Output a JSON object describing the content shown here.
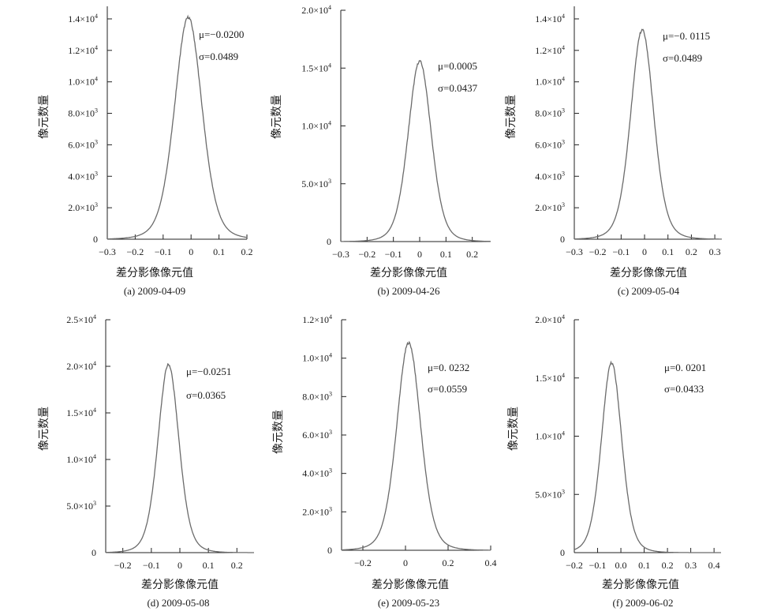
{
  "figure": {
    "x_axis_label": "差分影像像元值",
    "y_axis_label": "像元数量"
  },
  "chart_data": [
    {
      "type": "line",
      "caption": "(a) 2009-04-09",
      "xlabel": "差分影像像元值",
      "ylabel": "像元数量",
      "xlim": [
        -0.3,
        0.2
      ],
      "ylim": [
        0,
        14800
      ],
      "x_ticks": [
        -0.3,
        -0.2,
        -0.1,
        0.0,
        0.1,
        0.2
      ],
      "x_tick_labels": [
        "−0.3",
        "−0.2",
        "−0.1",
        "0",
        "0.1",
        "0.2"
      ],
      "y_ticks": [
        {
          "value": 0,
          "mant": "0",
          "exp": ""
        },
        {
          "value": 2000,
          "mant": "2.0×10",
          "exp": "3"
        },
        {
          "value": 4000,
          "mant": "4.0×10",
          "exp": "3"
        },
        {
          "value": 6000,
          "mant": "6.0×10",
          "exp": "3"
        },
        {
          "value": 8000,
          "mant": "8.0×10",
          "exp": "3"
        },
        {
          "value": 10000,
          "mant": "1.0×10",
          "exp": "4"
        },
        {
          "value": 12000,
          "mant": "1.2×10",
          "exp": "4"
        },
        {
          "value": 14000,
          "mant": "1.4×10",
          "exp": "4"
        }
      ],
      "peak_x": -0.01,
      "peak_y": 14100,
      "sigma": 0.0489,
      "mu_label": "μ=−0.0200",
      "sigma_label": "σ=0.0489"
    },
    {
      "type": "line",
      "caption": "(b) 2009-04-26",
      "xlabel": "差分影像像元值",
      "ylabel": "像元数量",
      "xlim": [
        -0.3,
        0.27
      ],
      "ylim": [
        0,
        20000
      ],
      "x_ticks": [
        -0.3,
        -0.2,
        -0.1,
        0.0,
        0.1,
        0.2
      ],
      "x_tick_labels": [
        "−0.3",
        "−0.2",
        "−0.1",
        "0",
        "0.1",
        "0.2"
      ],
      "y_ticks": [
        {
          "value": 0,
          "mant": "0",
          "exp": ""
        },
        {
          "value": 5000,
          "mant": "5.0×10",
          "exp": "3"
        },
        {
          "value": 10000,
          "mant": "1.0×10",
          "exp": "4"
        },
        {
          "value": 15000,
          "mant": "1.5×10",
          "exp": "4"
        },
        {
          "value": 20000,
          "mant": "2.0×10",
          "exp": "4"
        }
      ],
      "peak_x": 0.0,
      "peak_y": 15600,
      "sigma": 0.0437,
      "mu_label": "μ=0.0005",
      "sigma_label": "σ=0.0437"
    },
    {
      "type": "line",
      "caption": "(c) 2009-05-04",
      "xlabel": "差分影像像元值",
      "ylabel": "像元数量",
      "xlim": [
        -0.3,
        0.33
      ],
      "ylim": [
        0,
        14800
      ],
      "x_ticks": [
        -0.3,
        -0.2,
        -0.1,
        0.0,
        0.1,
        0.2,
        0.3
      ],
      "x_tick_labels": [
        "−0.3",
        "−0.2",
        "−0.1",
        "0",
        "0.1",
        "0.2",
        "0.3"
      ],
      "y_ticks": [
        {
          "value": 0,
          "mant": "0",
          "exp": ""
        },
        {
          "value": 2000,
          "mant": "2.0×10",
          "exp": "3"
        },
        {
          "value": 4000,
          "mant": "4.0×10",
          "exp": "3"
        },
        {
          "value": 6000,
          "mant": "6.0×10",
          "exp": "3"
        },
        {
          "value": 8000,
          "mant": "8.0×10",
          "exp": "3"
        },
        {
          "value": 10000,
          "mant": "1.0×10",
          "exp": "4"
        },
        {
          "value": 12000,
          "mant": "1.2×10",
          "exp": "4"
        },
        {
          "value": 14000,
          "mant": "1.4×10",
          "exp": "4"
        }
      ],
      "peak_x": -0.01,
      "peak_y": 13300,
      "sigma": 0.0489,
      "mu_label": "μ=−0. 0115",
      "sigma_label": "σ=0.0489"
    },
    {
      "type": "line",
      "caption": "(d) 2009-05-08",
      "xlabel": "差分影像像元值",
      "ylabel": "像元数量",
      "xlim": [
        -0.26,
        0.26
      ],
      "ylim": [
        0,
        25000
      ],
      "x_ticks": [
        -0.2,
        -0.1,
        0.0,
        0.1,
        0.2
      ],
      "x_tick_labels": [
        "−0.2",
        "−0.1",
        "0",
        "0.1",
        "0.2"
      ],
      "y_ticks": [
        {
          "value": 0,
          "mant": "0",
          "exp": ""
        },
        {
          "value": 5000,
          "mant": "5.0×10",
          "exp": "3"
        },
        {
          "value": 10000,
          "mant": "1.0×10",
          "exp": "4"
        },
        {
          "value": 15000,
          "mant": "1.5×10",
          "exp": "4"
        },
        {
          "value": 20000,
          "mant": "2.0×10",
          "exp": "4"
        },
        {
          "value": 25000,
          "mant": "2.5×10",
          "exp": "4"
        }
      ],
      "peak_x": -0.04,
      "peak_y": 20200,
      "sigma": 0.0365,
      "mu_label": "μ=−0.0251",
      "sigma_label": "σ=0.0365"
    },
    {
      "type": "line",
      "caption": "(e) 2009-05-23",
      "xlabel": "差分影像像元值",
      "ylabel": "像元数量",
      "xlim": [
        -0.3,
        0.4
      ],
      "ylim": [
        0,
        12000
      ],
      "x_ticks": [
        -0.2,
        0.0,
        0.2,
        0.4
      ],
      "x_tick_labels": [
        "−0.2",
        "0",
        "0.2",
        "0.4"
      ],
      "y_ticks": [
        {
          "value": 0,
          "mant": "0",
          "exp": ""
        },
        {
          "value": 2000,
          "mant": "2.0×10",
          "exp": "3"
        },
        {
          "value": 4000,
          "mant": "4.0×10",
          "exp": "3"
        },
        {
          "value": 6000,
          "mant": "6.0×10",
          "exp": "3"
        },
        {
          "value": 8000,
          "mant": "8.0×10",
          "exp": "3"
        },
        {
          "value": 10000,
          "mant": "1.0×10",
          "exp": "4"
        },
        {
          "value": 12000,
          "mant": "1.2×10",
          "exp": "4"
        }
      ],
      "peak_x": 0.015,
      "peak_y": 10800,
      "sigma": 0.0559,
      "mu_label": "μ=0. 0232",
      "sigma_label": "σ=0.0559"
    },
    {
      "type": "line",
      "caption": "(f) 2009-06-02",
      "xlabel": "差分影像像元值",
      "ylabel": "像元数量",
      "xlim": [
        -0.2,
        0.43
      ],
      "ylim": [
        0,
        20000
      ],
      "x_ticks": [
        -0.2,
        -0.1,
        0.0,
        0.1,
        0.2,
        0.3,
        0.4
      ],
      "x_tick_labels": [
        "−0.2",
        "−0.1",
        "0.0",
        "0.1",
        "0.2",
        "0.3",
        "0.4"
      ],
      "y_ticks": [
        {
          "value": 0,
          "mant": "0",
          "exp": ""
        },
        {
          "value": 5000,
          "mant": "5.0×10",
          "exp": "3"
        },
        {
          "value": 10000,
          "mant": "1.0×10",
          "exp": "4"
        },
        {
          "value": 15000,
          "mant": "1.5×10",
          "exp": "4"
        },
        {
          "value": 20000,
          "mant": "2.0×10",
          "exp": "4"
        }
      ],
      "peak_x": -0.04,
      "peak_y": 16300,
      "sigma": 0.0433,
      "mu_label": "μ=0. 0201",
      "sigma_label": "σ=0.0433"
    }
  ]
}
